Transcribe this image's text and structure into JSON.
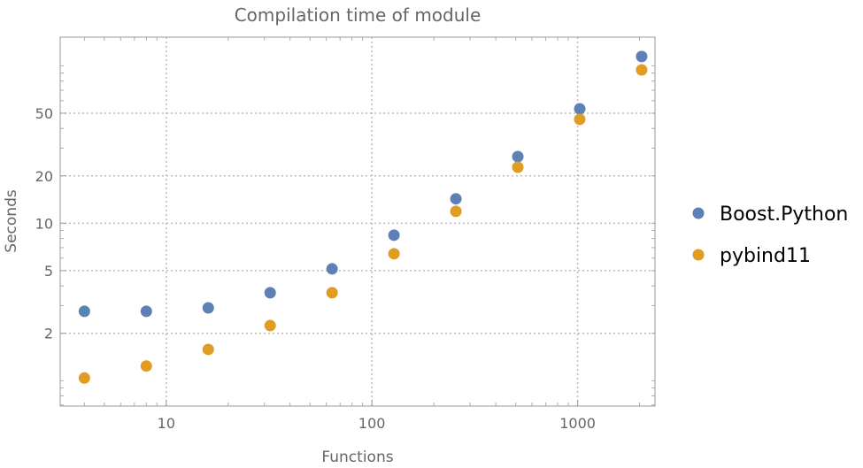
{
  "chart_data": {
    "type": "scatter",
    "title": "Compilation time of module",
    "xlabel": "Functions",
    "ylabel": "Seconds",
    "xscale": "log",
    "yscale": "log",
    "xlim": [
      3.05,
      2378
    ],
    "ylim": [
      0.69,
      152
    ],
    "grid": true,
    "legend_position": "right",
    "x_ticks": [
      10,
      100,
      1000
    ],
    "y_ticks": [
      2,
      5,
      10,
      20,
      50
    ],
    "x": [
      4,
      8,
      16,
      32,
      64,
      128,
      256,
      512,
      1024,
      2048
    ],
    "series": [
      {
        "name": "Boost.Python",
        "color": "#5E81B5",
        "values": [
          2.76,
          2.76,
          2.9,
          3.62,
          5.13,
          8.4,
          14.3,
          26.5,
          53.3,
          114.5
        ]
      },
      {
        "name": "pybind11",
        "color": "#E19C24",
        "values": [
          1.04,
          1.24,
          1.58,
          2.24,
          3.62,
          6.4,
          11.9,
          22.7,
          45.7,
          94.2
        ]
      }
    ]
  }
}
